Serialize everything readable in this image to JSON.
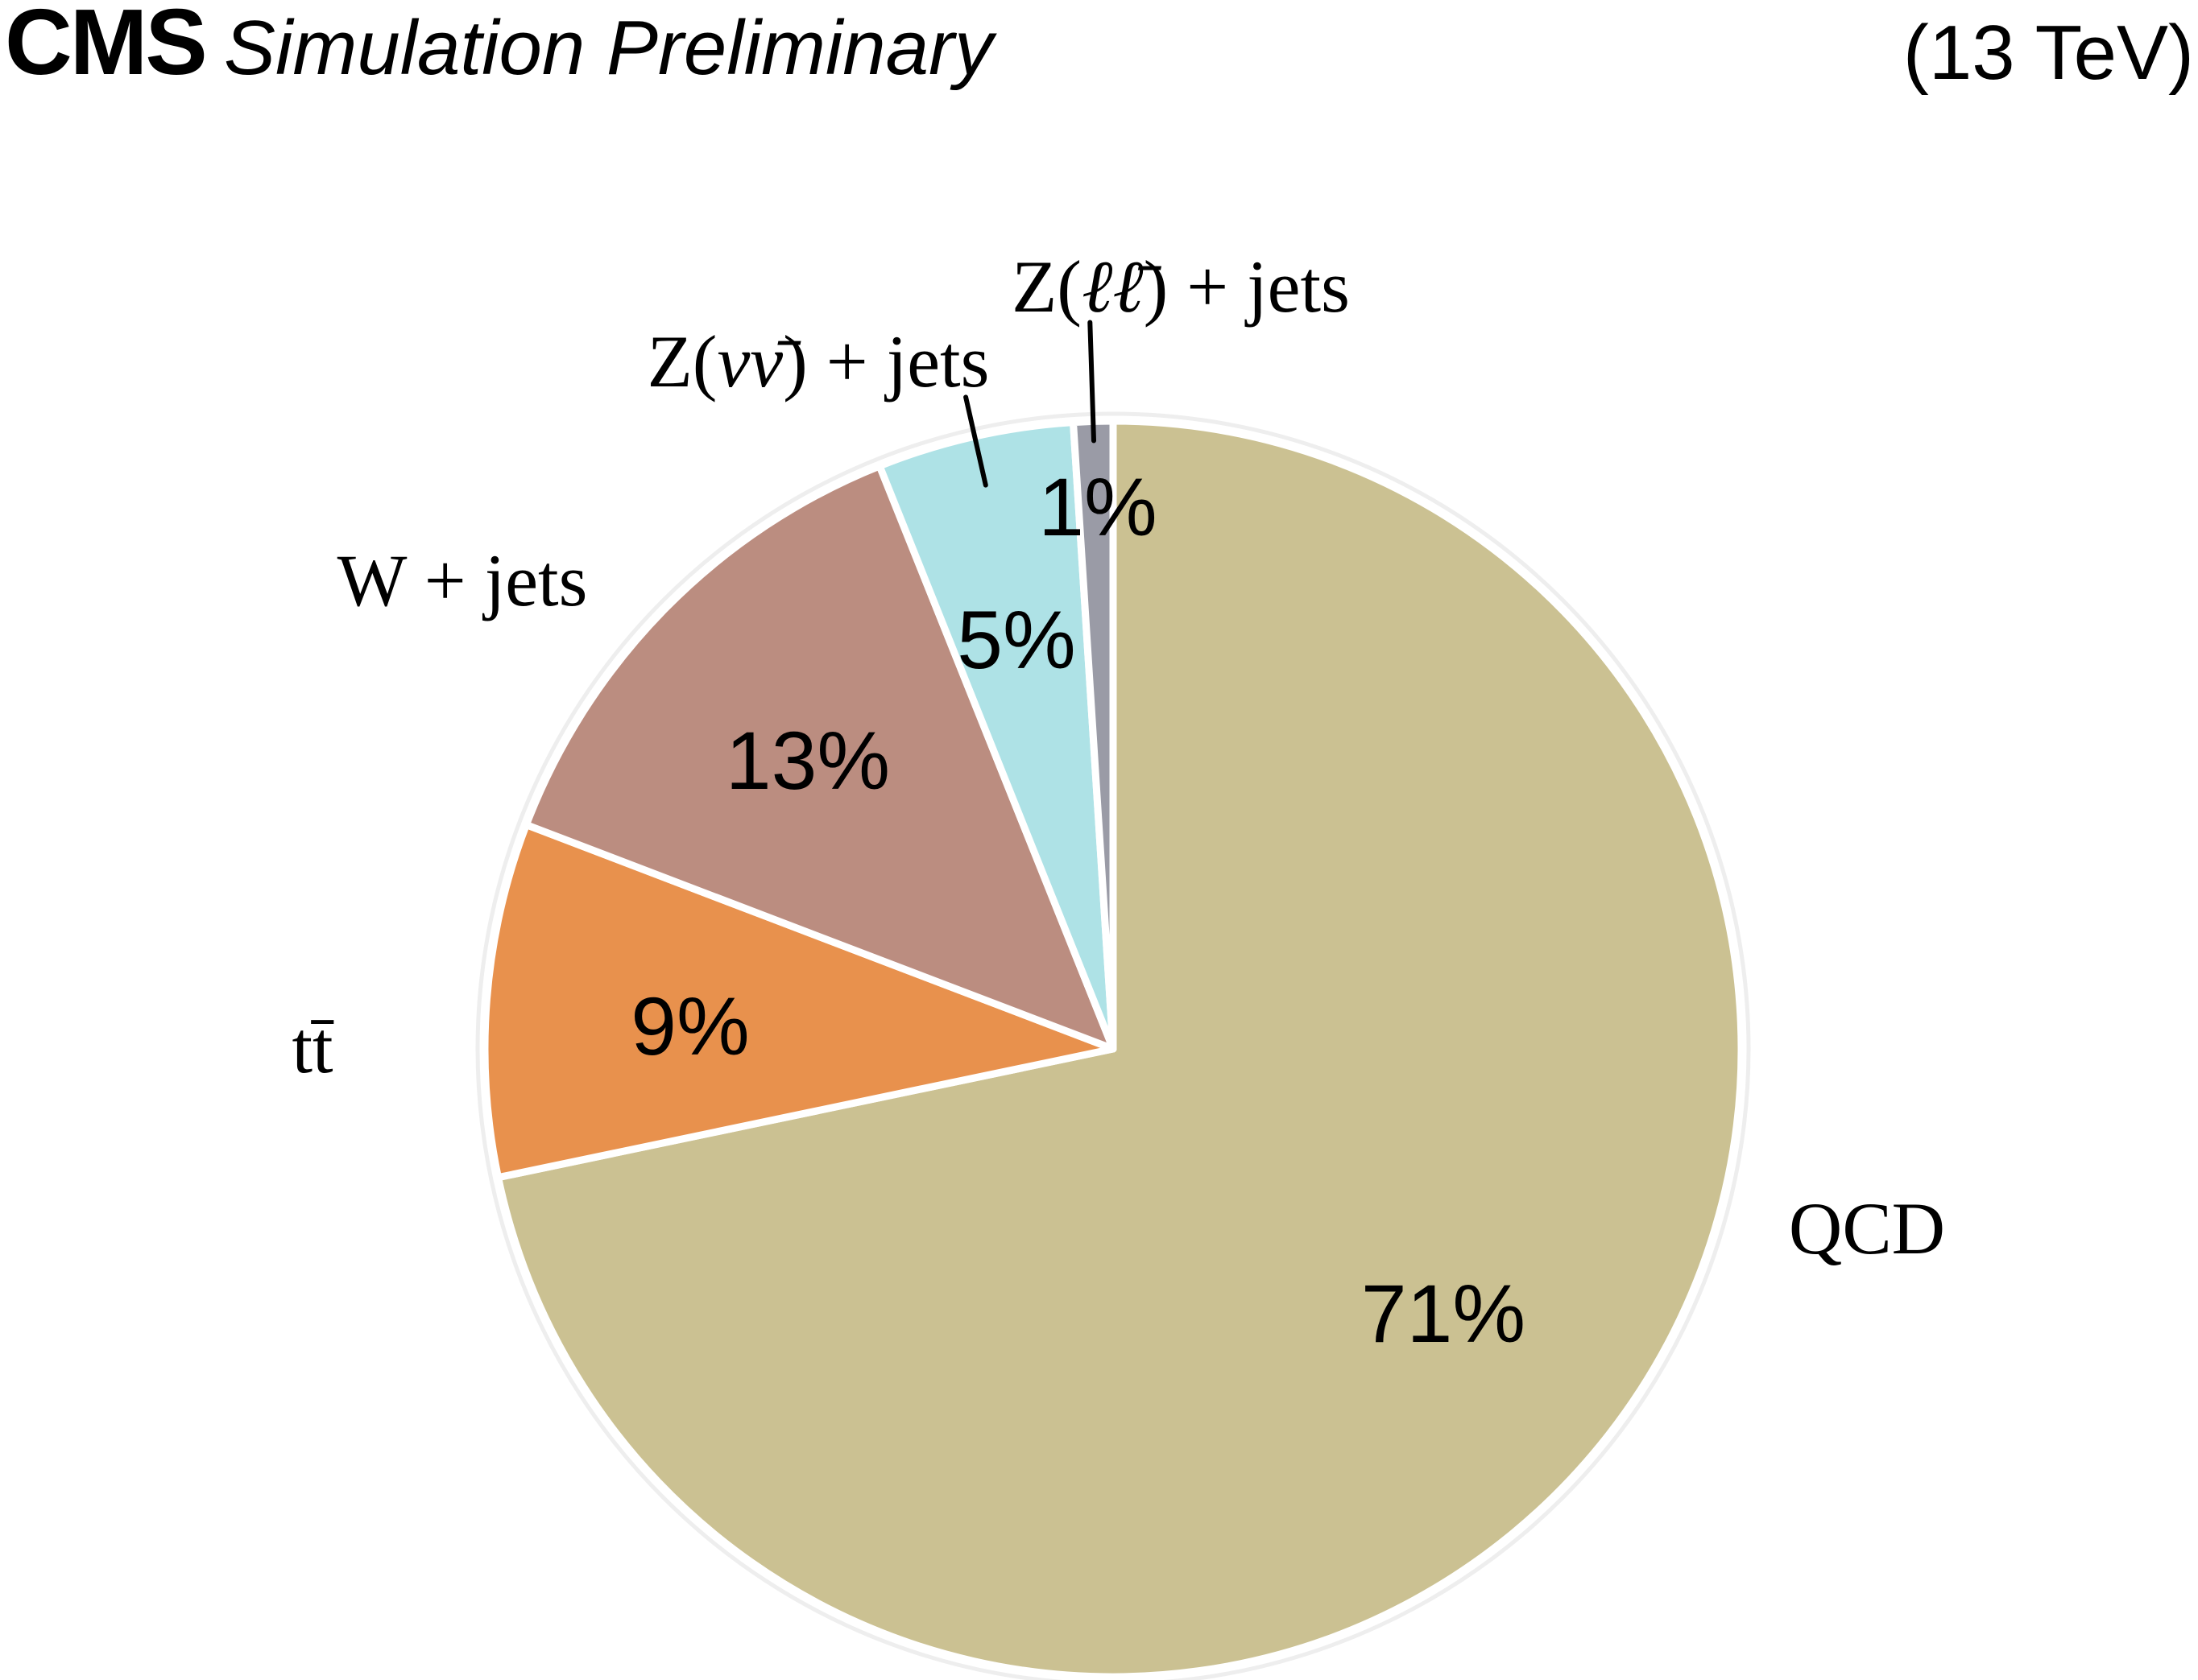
{
  "header": {
    "experiment": "CMS",
    "subtitle": "Simulation Preliminary",
    "energy": "(13 TeV)"
  },
  "colors": {
    "background": "#ffffff",
    "slice_border": "#ffffff",
    "outline_ring": "#eeeeee",
    "leader_line": "#000000",
    "text": "#000000"
  },
  "chart_data": {
    "type": "pie",
    "title": "",
    "start_angle_deg": 0,
    "direction": "clockwise",
    "legend_position": "outside-labels",
    "slices": [
      {
        "name": "qcd",
        "label": "QCD",
        "label_parts": [
          {
            "t": "QCD",
            "style": "upright"
          }
        ],
        "value_pct": 71,
        "pct_label": "71%",
        "color": "#cbc192"
      },
      {
        "name": "ttbar",
        "label": "tt̄",
        "label_parts": [
          {
            "t": "tt̄",
            "style": "upright"
          }
        ],
        "value_pct": 9,
        "pct_label": "9%",
        "color": "#e8914d"
      },
      {
        "name": "w-jets",
        "label": "W + jets",
        "label_parts": [
          {
            "t": "W + jets",
            "style": "upright"
          }
        ],
        "value_pct": 13,
        "pct_label": "13%",
        "color": "#bb8d80"
      },
      {
        "name": "z-nunu-jets",
        "label": "Z(νν̄) + jets",
        "label_parts": [
          {
            "t": "Z(",
            "style": "upright"
          },
          {
            "t": "νν̄",
            "style": "italic"
          },
          {
            "t": ") + jets",
            "style": "upright"
          }
        ],
        "value_pct": 5,
        "pct_label": "5%",
        "color": "#aee2e6"
      },
      {
        "name": "z-ll-jets",
        "label": "Z(ℓℓ̄) + jets",
        "label_parts": [
          {
            "t": "Z(",
            "style": "upright"
          },
          {
            "t": "ℓℓ̄",
            "style": "italic"
          },
          {
            "t": ") + jets",
            "style": "upright"
          }
        ],
        "value_pct": 1,
        "pct_label": "1%",
        "color": "#9a9ba6"
      }
    ]
  }
}
